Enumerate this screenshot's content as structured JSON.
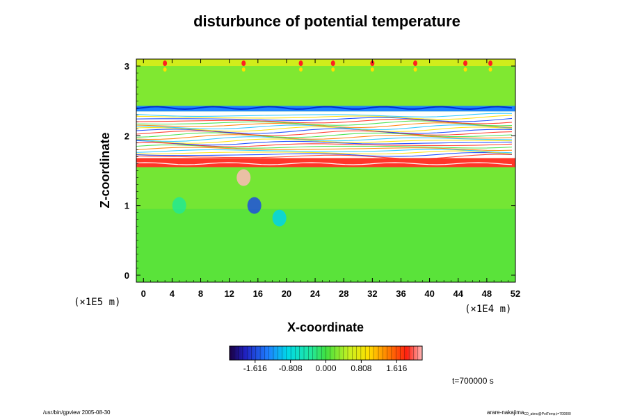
{
  "chart_data": {
    "type": "heatmap",
    "title": "disturbunce of potential temperature",
    "xlabel": "X-coordinate",
    "ylabel": "Z-coordinate",
    "x_unit": "(×1E4 m)",
    "y_unit": "(×1E5 m)",
    "xlim": [
      -1,
      52
    ],
    "ylim": [
      -0.1,
      3.1
    ],
    "x_ticks": [
      "0",
      "4",
      "8",
      "12",
      "16",
      "20",
      "24",
      "28",
      "32",
      "36",
      "40",
      "44",
      "48",
      "52"
    ],
    "y_ticks": [
      "0",
      "1",
      "2",
      "3"
    ],
    "colorbar": {
      "min": -2.2,
      "max": 2.2,
      "tick_labels": [
        "-1.616",
        "-0.808",
        "0.000",
        "0.808",
        "1.616"
      ],
      "tick_values": [
        -1.616,
        -0.808,
        0.0,
        0.808,
        1.616
      ]
    },
    "background_value": 0.15,
    "bands": [
      {
        "z_min": -0.1,
        "z_max": 0.95,
        "value": 0.1
      },
      {
        "z_min": 0.95,
        "z_max": 1.55,
        "value": 0.2
      },
      {
        "z_min": 1.55,
        "z_max": 1.68,
        "value": 1.9
      },
      {
        "z_min": 1.68,
        "z_max": 2.35,
        "value": 2.6
      },
      {
        "z_min": 2.35,
        "z_max": 2.43,
        "value": -1.3
      },
      {
        "z_min": 2.43,
        "z_max": 3.0,
        "value": 0.25
      },
      {
        "z_min": 3.0,
        "z_max": 3.1,
        "value": 0.6
      }
    ],
    "features": [
      {
        "x": 14,
        "z": 1.4,
        "value": 2.2
      },
      {
        "x": 15.5,
        "z": 1.0,
        "value": -1.6
      },
      {
        "x": 19,
        "z": 0.82,
        "value": -0.9
      },
      {
        "x": 5,
        "z": 1.0,
        "value": -0.3
      }
    ],
    "top_spots_x": [
      3,
      14,
      22,
      26.5,
      32,
      38,
      45,
      48.5
    ],
    "time_label": "t=700000 s"
  },
  "footer": {
    "left": "/usr/bin/gpview 2005-08-30",
    "right_main": "arare-nakajima",
    "right_sub": "C0_atmo@PotTemp,t=700000"
  }
}
